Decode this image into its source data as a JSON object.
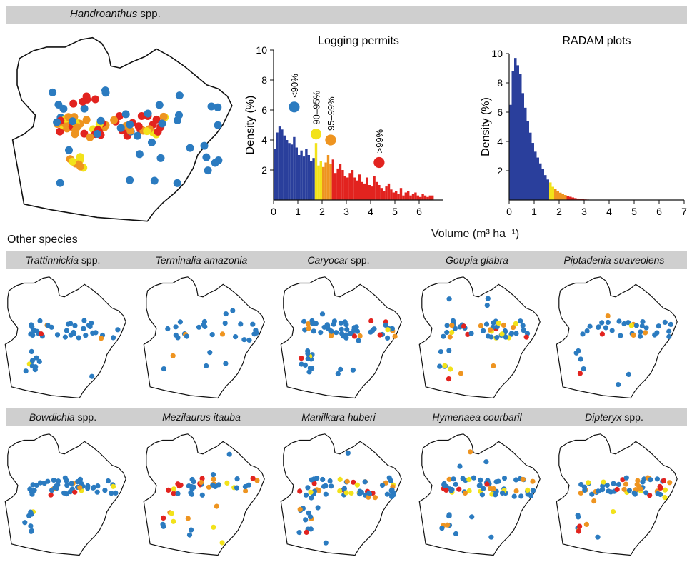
{
  "figure": {
    "main_species_italic": "Handroanthus",
    "main_species_suffix": " spp.",
    "other_species_heading": "Other species",
    "xlabel": "Volume (m³ ha⁻¹)",
    "colors": {
      "below90": "#2a3f9c",
      "p90_95": "#f2e21a",
      "p95_99": "#ee9420",
      "above99": "#e2231f",
      "dot_blue": "#2b7bc0",
      "band": "#cfcfcf"
    },
    "legend": [
      {
        "label": "<90%",
        "color": "#2b7bc0"
      },
      {
        "label": "90–95%",
        "color": "#f2e21a"
      },
      {
        "label": "95–99%",
        "color": "#ee9420"
      },
      {
        "label": ">99%",
        "color": "#e2231f"
      }
    ]
  },
  "species_row1": [
    {
      "italic": "Trattinnickia",
      "suffix": " spp."
    },
    {
      "italic": "Terminalia amazonia",
      "suffix": ""
    },
    {
      "italic": "Caryocar",
      "suffix": " spp."
    },
    {
      "italic": "Goupia glabra",
      "suffix": ""
    },
    {
      "italic": "Piptadenia suaveolens",
      "suffix": ""
    }
  ],
  "species_row2": [
    {
      "italic": "Bowdichia",
      "suffix": " spp."
    },
    {
      "italic": "Mezilaurus itauba",
      "suffix": ""
    },
    {
      "italic": "Manilkara huberi",
      "suffix": ""
    },
    {
      "italic": "Hymenaea courbaril",
      "suffix": ""
    },
    {
      "italic": "Dipteryx",
      "suffix": " spp."
    }
  ],
  "chart_data": [
    {
      "type": "bar",
      "title": "Logging permits",
      "ylabel": "Density (%)",
      "xlabel": "",
      "xlim": [
        0,
        7
      ],
      "ylim": [
        0,
        10
      ],
      "xticks": [
        0,
        1,
        2,
        3,
        4,
        5,
        6
      ],
      "yticks": [
        2,
        4,
        6,
        8,
        10
      ],
      "bin_width": 0.1,
      "bin_start": 0,
      "values": [
        3.4,
        4.5,
        4.9,
        4.7,
        4.3,
        4.0,
        3.8,
        3.7,
        4.2,
        3.5,
        3.0,
        3.3,
        2.9,
        3.4,
        3.0,
        2.6,
        2.8,
        3.8,
        2.3,
        2.6,
        2.2,
        2.5,
        3.0,
        2.4,
        2.7,
        1.8,
        2.1,
        2.4,
        2.0,
        1.6,
        1.5,
        1.8,
        2.0,
        1.5,
        1.3,
        1.7,
        1.2,
        1.1,
        1.5,
        1.0,
        0.9,
        1.6,
        1.2,
        1.0,
        0.8,
        0.6,
        0.9,
        1.1,
        0.7,
        0.5,
        0.6,
        0.4,
        0.8,
        0.3,
        0.5,
        0.6,
        0.3,
        0.4,
        0.5,
        0.3,
        0.2,
        0.4,
        0.3,
        0.2,
        0.3,
        0.3
      ],
      "color_thresholds": {
        "p90": 1.7,
        "p95": 2.0,
        "p99": 2.4
      }
    },
    {
      "type": "bar",
      "title": "RADAM plots",
      "ylabel": "Density (%)",
      "xlabel": "",
      "xlim": [
        0,
        7
      ],
      "ylim": [
        0,
        10
      ],
      "xticks": [
        0,
        1,
        2,
        3,
        4,
        5,
        6,
        7
      ],
      "yticks": [
        2,
        4,
        6,
        8,
        10
      ],
      "bin_width": 0.1,
      "bin_start": 0,
      "values": [
        6.5,
        8.8,
        9.7,
        9.2,
        8.6,
        7.3,
        6.3,
        5.4,
        4.6,
        3.9,
        3.3,
        2.9,
        2.5,
        2.1,
        1.7,
        1.4,
        1.2,
        0.9,
        0.75,
        0.6,
        0.5,
        0.42,
        0.34,
        0.28,
        0.22,
        0.17,
        0.13,
        0.1,
        0.08,
        0.06,
        0.04,
        0.03,
        0.02
      ],
      "color_thresholds": {
        "p90": 1.6,
        "p95": 1.8,
        "p99": 2.3
      }
    }
  ]
}
